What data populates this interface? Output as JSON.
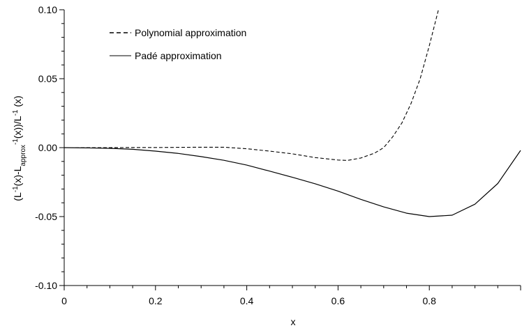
{
  "chart_data": {
    "type": "line",
    "title": "",
    "xlabel": "x",
    "ylabel_parts": [
      "(L",
      "-1",
      "(x)-L",
      "approx",
      "-1",
      "(x))/L",
      "-1",
      " (x)"
    ],
    "xlim": [
      0,
      1.0
    ],
    "ylim": [
      -0.1,
      0.1
    ],
    "x_ticks": [
      0,
      0.2,
      0.4,
      0.6,
      0.8
    ],
    "x_tick_labels": [
      "0",
      "0.2",
      "0.4",
      "0.6",
      "0.8"
    ],
    "y_ticks": [
      -0.1,
      -0.05,
      0.0,
      0.05,
      0.1
    ],
    "y_tick_labels": [
      "-0.10",
      "-0.05",
      "0.00",
      "0.05",
      "0.10"
    ],
    "grid": false,
    "legend_position": "top-left",
    "series": [
      {
        "name": "Polynomial approximation",
        "style": "dashed",
        "color": "#000000",
        "x": [
          0,
          0.05,
          0.1,
          0.15,
          0.2,
          0.25,
          0.3,
          0.35,
          0.4,
          0.45,
          0.5,
          0.55,
          0.6,
          0.62,
          0.65,
          0.68,
          0.7,
          0.72,
          0.74,
          0.76,
          0.78,
          0.8,
          0.82
        ],
        "y": [
          0,
          0,
          0,
          0.0001,
          0.0001,
          0.0002,
          0.0003,
          0.0003,
          -0.0008,
          -0.0025,
          -0.0045,
          -0.0072,
          -0.009,
          -0.0093,
          -0.0075,
          -0.004,
          0.0,
          0.008,
          0.018,
          0.032,
          0.05,
          0.074,
          0.1
        ]
      },
      {
        "name": "Padé approximation",
        "style": "solid",
        "color": "#000000",
        "x": [
          0,
          0.05,
          0.1,
          0.15,
          0.2,
          0.25,
          0.3,
          0.35,
          0.4,
          0.45,
          0.5,
          0.55,
          0.6,
          0.65,
          0.7,
          0.75,
          0.8,
          0.85,
          0.9,
          0.95,
          1.0
        ],
        "y": [
          0,
          -0.0002,
          -0.0005,
          -0.0012,
          -0.0025,
          -0.0042,
          -0.0065,
          -0.0092,
          -0.0127,
          -0.017,
          -0.0215,
          -0.0262,
          -0.0315,
          -0.0375,
          -0.043,
          -0.0475,
          -0.05,
          -0.049,
          -0.041,
          -0.026,
          -0.002
        ]
      }
    ]
  }
}
